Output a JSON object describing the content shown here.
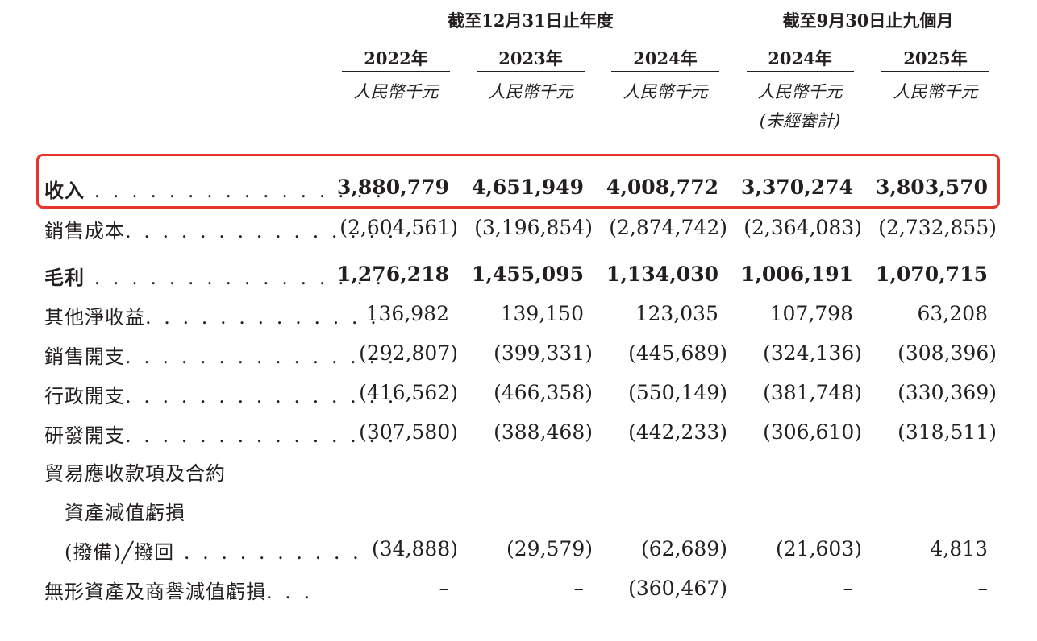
{
  "header": {
    "group_fy": "截至12月31日止年度",
    "group_9m": "截至9月30日止九個月"
  },
  "columns": [
    {
      "year": "2022年",
      "unit": "人民幣千元",
      "note": ""
    },
    {
      "year": "2023年",
      "unit": "人民幣千元",
      "note": ""
    },
    {
      "year": "2024年",
      "unit": "人民幣千元",
      "note": ""
    },
    {
      "year": "2024年",
      "unit": "人民幣千元",
      "note": "(未經審計)"
    },
    {
      "year": "2025年",
      "unit": "人民幣千元",
      "note": ""
    }
  ],
  "rows": [
    {
      "label": "收入",
      "dots": " . . . . . . . . . . . . . . . .",
      "values": [
        "3,880,779",
        "4,651,949",
        "4,008,772",
        "3,370,274",
        "3,803,570"
      ]
    },
    {
      "label": "銷售成本",
      "dots": ". . . . . . . . . . . . . . .",
      "values": [
        "(2,604,561)",
        "(3,196,854)",
        "(2,874,742)",
        "(2,364,083)",
        "(2,732,855)"
      ]
    },
    {
      "label": "毛利",
      "dots": " . . . . . . . . . . . . . . . .",
      "values": [
        "1,276,218",
        "1,455,095",
        "1,134,030",
        "1,006,191",
        "1,070,715"
      ]
    },
    {
      "label": "其他淨收益",
      "dots": ". . . . . . . . . . . . .",
      "values": [
        "136,982",
        "139,150",
        "123,035",
        "107,798",
        "63,208"
      ]
    },
    {
      "label": "銷售開支",
      "dots": ". . . . . . . . . . . . . . .",
      "values": [
        "(292,807)",
        "(399,331)",
        "(445,689)",
        "(324,136)",
        "(308,396)"
      ]
    },
    {
      "label": "行政開支",
      "dots": ". . . . . . . . . . . . . . .",
      "values": [
        "(416,562)",
        "(466,358)",
        "(550,149)",
        "(381,748)",
        "(330,369)"
      ]
    },
    {
      "label": "研發開支",
      "dots": ". . . . . . . . . . . . . . .",
      "values": [
        "(307,580)",
        "(388,468)",
        "(442,233)",
        "(306,610)",
        "(318,511)"
      ]
    },
    {
      "label": "貿易應收款項及合約"
    },
    {
      "label": "資產減值虧損"
    },
    {
      "label": "(撥備)╱撥回",
      "dots": " . . . . . . . . . .",
      "values": [
        "(34,888)",
        "(29,579)",
        "(62,689)",
        "(21,603)",
        "4,813"
      ]
    },
    {
      "label": "無形資產及商譽減值虧損",
      "dots": ". . .",
      "values": [
        "–",
        "–",
        "(360,467)",
        "–",
        "–"
      ]
    }
  ]
}
